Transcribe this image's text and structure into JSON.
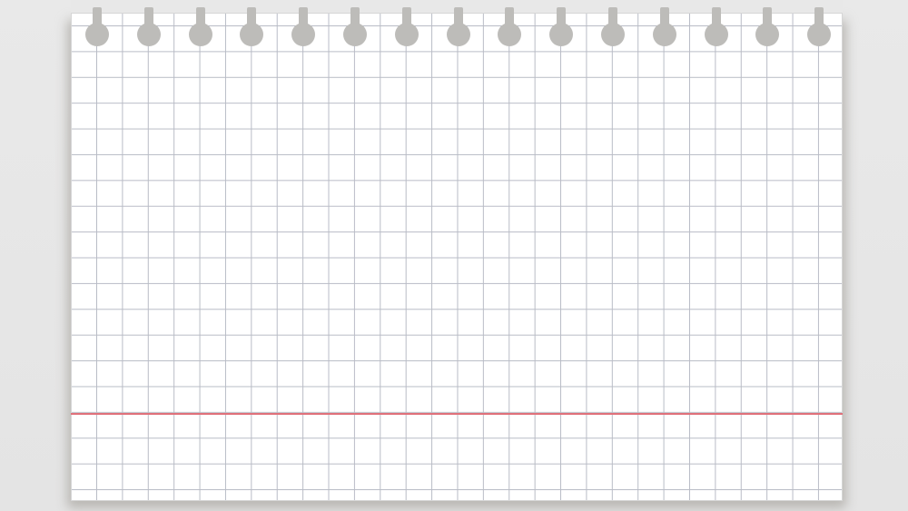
{
  "page": {
    "background_color": "#e6e6e6",
    "paper_color": "#ffffff",
    "grid_color": "#b9bcc6",
    "margin_line_color": "#e0707a",
    "hole_color": "#bdbcb9"
  },
  "paper": {
    "hole_count": 15,
    "icon": "torn-grid-paper-sheet"
  }
}
